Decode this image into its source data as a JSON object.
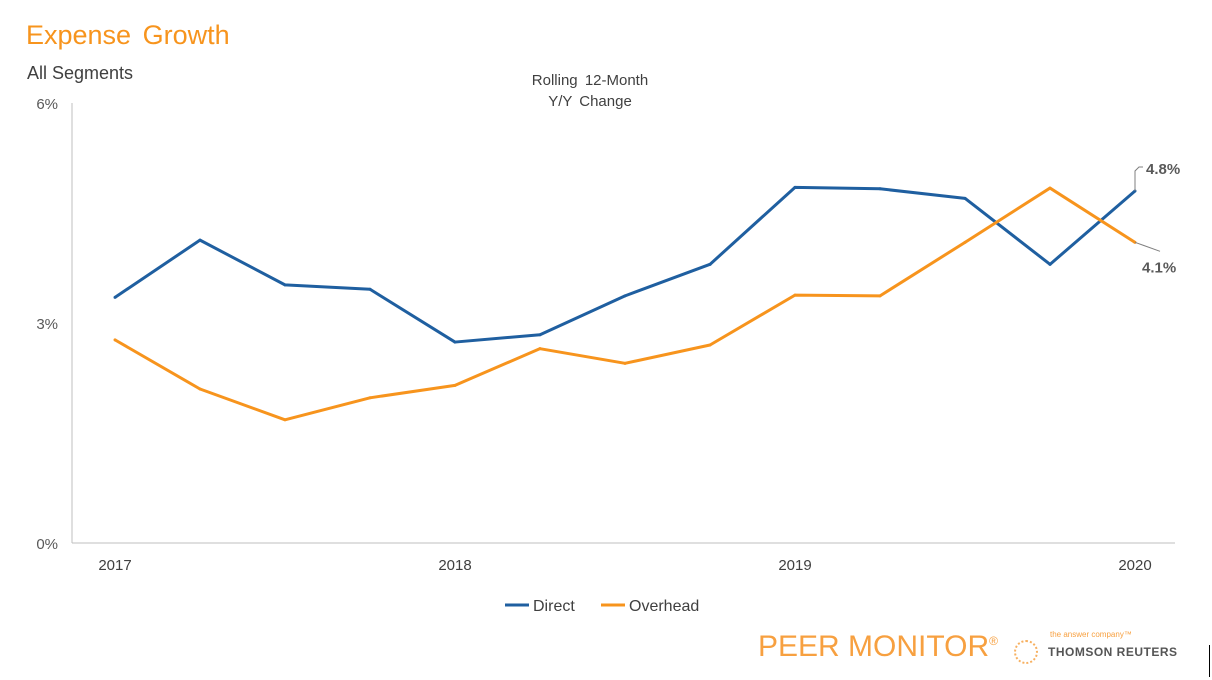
{
  "chart_data": {
    "type": "line",
    "title": "Expense Growth",
    "subtitle": "All Segments",
    "chart_title_lines": [
      "Rolling 12-Month",
      "Y/Y Change"
    ],
    "x_ticks": [
      "2017",
      "2018",
      "2019",
      "2020"
    ],
    "x": [
      "2017 Q1",
      "2017 Q2",
      "2017 Q3",
      "2017 Q4",
      "2018 Q1",
      "2018 Q2",
      "2018 Q3",
      "2018 Q4",
      "2019 Q1",
      "2019 Q2",
      "2019 Q3",
      "2019 Q4",
      "2020 Q1"
    ],
    "y_ticks": [
      "0%",
      "3%",
      "6%"
    ],
    "ylim": [
      0,
      6
    ],
    "series": [
      {
        "name": "Direct",
        "color": "#1f5fa0",
        "values": [
          3.35,
          4.13,
          3.52,
          3.46,
          2.74,
          2.84,
          3.37,
          3.8,
          4.85,
          4.83,
          4.7,
          3.8,
          4.8
        ],
        "end_label": "4.8%"
      },
      {
        "name": "Overhead",
        "color": "#f7941d",
        "values": [
          2.77,
          2.1,
          1.68,
          1.98,
          2.15,
          2.65,
          2.45,
          2.7,
          3.38,
          3.37,
          4.1,
          4.84,
          4.1
        ],
        "end_label": "4.1%"
      }
    ],
    "legend": "bottom",
    "grid": false
  },
  "branding": {
    "peer_monitor": "PEER MONITOR",
    "registered": "®",
    "tagline": "the answer company™",
    "thomson_reuters": "THOMSON REUTERS"
  }
}
